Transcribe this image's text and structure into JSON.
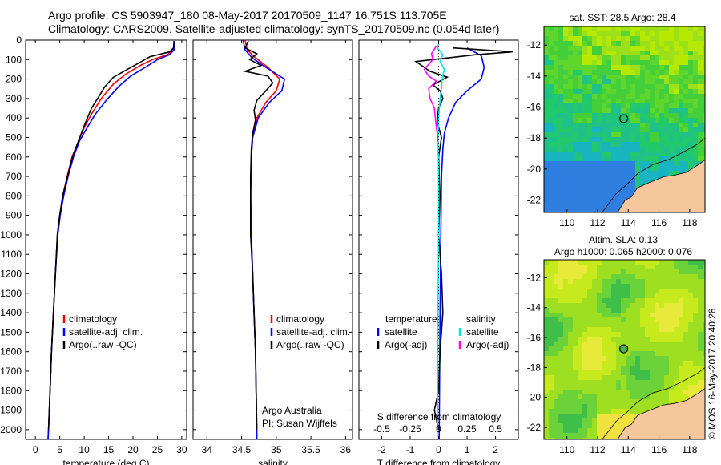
{
  "header": {
    "line1": "Argo profile: CS 5903947_180 08-May-2017 20170509_1147 16.751S 113.705E",
    "line2": "Climatology: CARS2009. Satellite-adjusted climatology: synTS_20170509.nc (0.054d later)"
  },
  "colors": {
    "climatology": "#ff0000",
    "satellite": "#0000ff",
    "argo": "#000000",
    "salinity_satellite": "#00e5e5",
    "salinity_argo": "#ff00ff",
    "land": "#f6c79c",
    "marker": "#000000"
  },
  "chart_data": [
    {
      "type": "line",
      "panel": "temperature",
      "xlabel": "temperature (deg C)",
      "ylabel": "",
      "xlim": [
        -2,
        31
      ],
      "ylim": [
        2050,
        0
      ],
      "xticks": [
        0,
        5,
        10,
        15,
        20,
        25,
        30
      ],
      "yticks": [
        0,
        100,
        200,
        300,
        400,
        500,
        600,
        700,
        800,
        900,
        1000,
        1100,
        1200,
        1300,
        1400,
        1500,
        1600,
        1700,
        1800,
        1900,
        2000
      ],
      "legend": [
        "climatology",
        "satellite-adj. clim.",
        "Argo(..raw -QC)"
      ],
      "series": [
        {
          "name": "climatology",
          "color_key": "climatology",
          "points": [
            [
              28.4,
              5
            ],
            [
              28.3,
              50
            ],
            [
              27.0,
              75
            ],
            [
              24.0,
              100
            ],
            [
              21.5,
              130
            ],
            [
              18.5,
              175
            ],
            [
              16.0,
              225
            ],
            [
              13.5,
              300
            ],
            [
              11.5,
              380
            ],
            [
              10.0,
              450
            ],
            [
              8.8,
              520
            ],
            [
              7.5,
              600
            ],
            [
              6.5,
              700
            ],
            [
              5.6,
              800
            ],
            [
              5.0,
              900
            ],
            [
              4.5,
              1000
            ],
            [
              4.1,
              1200
            ],
            [
              3.7,
              1400
            ],
            [
              3.3,
              1600
            ],
            [
              3.0,
              1800
            ],
            [
              2.7,
              2000
            ],
            [
              2.6,
              2050
            ]
          ]
        },
        {
          "name": "satellite-adj. clim.",
          "color_key": "satellite",
          "points": [
            [
              28.5,
              5
            ],
            [
              28.4,
              50
            ],
            [
              27.5,
              75
            ],
            [
              25.0,
              100
            ],
            [
              22.5,
              140
            ],
            [
              19.5,
              185
            ],
            [
              17.0,
              240
            ],
            [
              14.5,
              310
            ],
            [
              12.3,
              380
            ],
            [
              10.6,
              450
            ],
            [
              9.0,
              520
            ],
            [
              7.8,
              600
            ],
            [
              6.7,
              700
            ],
            [
              5.8,
              800
            ],
            [
              5.1,
              900
            ],
            [
              4.6,
              1000
            ],
            [
              4.1,
              1200
            ],
            [
              3.7,
              1400
            ],
            [
              3.3,
              1600
            ],
            [
              3.0,
              1800
            ],
            [
              2.7,
              2000
            ],
            [
              2.6,
              2050
            ]
          ]
        },
        {
          "name": "Argo(..raw -QC)",
          "color_key": "argo",
          "points": [
            [
              28.4,
              5
            ],
            [
              28.3,
              40
            ],
            [
              27.5,
              60
            ],
            [
              23.5,
              85
            ],
            [
              21.0,
              120
            ],
            [
              18.5,
              155
            ],
            [
              16.0,
              190
            ],
            [
              14.2,
              240
            ],
            [
              13.0,
              290
            ],
            [
              11.5,
              350
            ],
            [
              10.0,
              440
            ],
            [
              8.8,
              520
            ],
            [
              7.6,
              600
            ],
            [
              6.6,
              700
            ],
            [
              5.6,
              800
            ],
            [
              5.0,
              900
            ],
            [
              4.5,
              1000
            ],
            [
              4.1,
              1200
            ],
            [
              3.7,
              1400
            ],
            [
              3.3,
              1600
            ],
            [
              3.0,
              1800
            ],
            [
              2.7,
              2000
            ]
          ]
        }
      ]
    },
    {
      "type": "line",
      "panel": "salinity",
      "xlabel": "salinity",
      "ylabel": "",
      "xlim": [
        33.8,
        36.1
      ],
      "ylim": [
        2050,
        0
      ],
      "xticks": [
        34,
        34.5,
        35,
        35.5,
        36
      ],
      "legend": [
        "climatology",
        "satellite-adj. clim.",
        "Argo(..raw -QC)"
      ],
      "annotations": [
        "Argo Australia",
        "PI: Susan Wijffels"
      ],
      "series": [
        {
          "name": "climatology",
          "color_key": "climatology",
          "points": [
            [
              34.55,
              0
            ],
            [
              34.58,
              50
            ],
            [
              34.7,
              90
            ],
            [
              34.88,
              140
            ],
            [
              35.05,
              200
            ],
            [
              35.0,
              260
            ],
            [
              34.85,
              320
            ],
            [
              34.72,
              400
            ],
            [
              34.66,
              500
            ],
            [
              34.64,
              600
            ],
            [
              34.63,
              800
            ],
            [
              34.64,
              1000
            ],
            [
              34.66,
              1200
            ],
            [
              34.68,
              1400
            ],
            [
              34.7,
              1600
            ],
            [
              34.71,
              1800
            ],
            [
              34.72,
              2050
            ]
          ]
        },
        {
          "name": "satellite-adj. clim.",
          "color_key": "satellite",
          "points": [
            [
              34.52,
              0
            ],
            [
              34.55,
              50
            ],
            [
              34.65,
              90
            ],
            [
              34.85,
              140
            ],
            [
              35.12,
              200
            ],
            [
              35.08,
              260
            ],
            [
              34.9,
              320
            ],
            [
              34.74,
              400
            ],
            [
              34.66,
              500
            ],
            [
              34.64,
              600
            ],
            [
              34.63,
              800
            ],
            [
              34.64,
              1000
            ],
            [
              34.66,
              1200
            ],
            [
              34.68,
              1400
            ],
            [
              34.7,
              1600
            ],
            [
              34.71,
              1800
            ],
            [
              34.72,
              2050
            ]
          ]
        },
        {
          "name": "Argo(..raw -QC)",
          "color_key": "argo",
          "points": [
            [
              34.6,
              5
            ],
            [
              34.55,
              40
            ],
            [
              34.72,
              70
            ],
            [
              34.62,
              100
            ],
            [
              34.78,
              130
            ],
            [
              34.55,
              160
            ],
            [
              34.88,
              185
            ],
            [
              34.95,
              220
            ],
            [
              34.85,
              260
            ],
            [
              34.72,
              310
            ],
            [
              34.68,
              360
            ],
            [
              34.7,
              410
            ],
            [
              34.66,
              480
            ],
            [
              34.64,
              560
            ],
            [
              34.63,
              700
            ],
            [
              34.63,
              1000
            ],
            [
              34.66,
              1200
            ],
            [
              34.68,
              1400
            ],
            [
              34.7,
              1600
            ],
            [
              34.71,
              1800
            ],
            [
              34.72,
              2000
            ]
          ]
        }
      ]
    },
    {
      "type": "line",
      "panel": "difference",
      "xlabel": "T difference from climatology",
      "xlabel2": "S difference from climatology",
      "xlim": [
        -2.8,
        2.8
      ],
      "ylim": [
        2050,
        0
      ],
      "xticks": [
        -2,
        -1,
        0,
        1,
        2
      ],
      "xticks_s": [
        -0.5,
        -0.25,
        0,
        0.25,
        0.5
      ],
      "xticks_s_labels": [
        "-0.5",
        "-0.25",
        "0",
        "0.25",
        "0.5"
      ],
      "legend_temperature_title": "temperature",
      "legend_salinity_title": "salinity",
      "legend": [
        "satellite",
        "Argo(-adj)",
        "satellite",
        "Argo(-adj)"
      ],
      "series": [
        {
          "name": "satellite",
          "group": "temperature",
          "color_key": "satellite",
          "points": [
            [
              1.0,
              40
            ],
            [
              1.5,
              80
            ],
            [
              1.6,
              140
            ],
            [
              1.5,
              200
            ],
            [
              1.0,
              260
            ],
            [
              0.6,
              320
            ],
            [
              0.35,
              400
            ],
            [
              0.2,
              480
            ],
            [
              0.15,
              560
            ],
            [
              0.1,
              700
            ],
            [
              0.08,
              1000
            ],
            [
              0.05,
              1400
            ],
            [
              0.03,
              1800
            ],
            [
              0.02,
              2050
            ]
          ]
        },
        {
          "name": "Argo(-adj)",
          "group": "temperature",
          "color_key": "argo",
          "points": [
            [
              0.5,
              40
            ],
            [
              2.6,
              60
            ],
            [
              1.3,
              75
            ],
            [
              -0.8,
              110
            ],
            [
              -0.3,
              160
            ],
            [
              0.3,
              190
            ],
            [
              -0.2,
              230
            ],
            [
              0.05,
              260
            ],
            [
              0.15,
              300
            ],
            [
              0.0,
              350
            ],
            [
              -0.05,
              420
            ],
            [
              0.1,
              500
            ],
            [
              0.0,
              600
            ],
            [
              0.05,
              800
            ],
            [
              0.0,
              1000
            ],
            [
              0.1,
              1200
            ],
            [
              0.15,
              1400
            ],
            [
              0.05,
              1600
            ],
            [
              0.0,
              1800
            ],
            [
              -0.15,
              1900
            ],
            [
              0.0,
              2000
            ]
          ]
        },
        {
          "name": "satellite",
          "group": "salinity",
          "color_key": "salinity_satellite",
          "points": [
            [
              0.0,
              20
            ],
            [
              -0.05,
              40
            ],
            [
              0.15,
              75
            ],
            [
              0.05,
              110
            ],
            [
              0.2,
              150
            ],
            [
              0.12,
              200
            ],
            [
              0.1,
              250
            ],
            [
              0.05,
              300
            ],
            [
              0.0,
              400
            ],
            [
              -0.02,
              500
            ],
            [
              0.0,
              700
            ],
            [
              0.0,
              1000
            ],
            [
              -0.02,
              1400
            ],
            [
              -0.03,
              1800
            ],
            [
              -0.05,
              2050
            ]
          ]
        },
        {
          "name": "Argo(-adj)",
          "group": "salinity",
          "color_key": "salinity_argo",
          "points": [
            [
              -0.08,
              30
            ],
            [
              -0.25,
              70
            ],
            [
              -0.2,
              100
            ],
            [
              -0.5,
              150
            ],
            [
              -0.35,
              185
            ],
            [
              -0.08,
              210
            ],
            [
              -0.35,
              250
            ],
            [
              -0.3,
              300
            ],
            [
              -0.15,
              350
            ],
            [
              -0.1,
              420
            ],
            [
              -0.05,
              480
            ],
            [
              -0.02,
              520
            ]
          ]
        }
      ]
    },
    {
      "type": "heatmap",
      "panel": "sst_map",
      "title": "sat. SST: 28.5 Argo: 28.4",
      "xticks": [
        110,
        112,
        114,
        116,
        118
      ],
      "yticks": [
        -12,
        -14,
        -16,
        -18,
        -20,
        -22
      ],
      "xlim": [
        108.5,
        119.0
      ],
      "ylim": [
        -22.8,
        -10.8
      ],
      "marker": [
        113.705,
        -16.751
      ]
    },
    {
      "type": "heatmap",
      "panel": "sla_map",
      "title": "Altim. SLA: 0.13",
      "subtitle": "Argo h1000: 0.065 h2000: 0.076",
      "xticks": [
        110,
        112,
        114,
        116,
        118
      ],
      "yticks": [
        -12,
        -14,
        -16,
        -18,
        -20,
        -22
      ],
      "xlim": [
        108.5,
        119.0
      ],
      "ylim": [
        -22.8,
        -10.8
      ],
      "marker": [
        113.705,
        -16.751
      ]
    }
  ],
  "footer": {
    "stamp": "©IMOS 16-May-2017 20:40:28"
  }
}
